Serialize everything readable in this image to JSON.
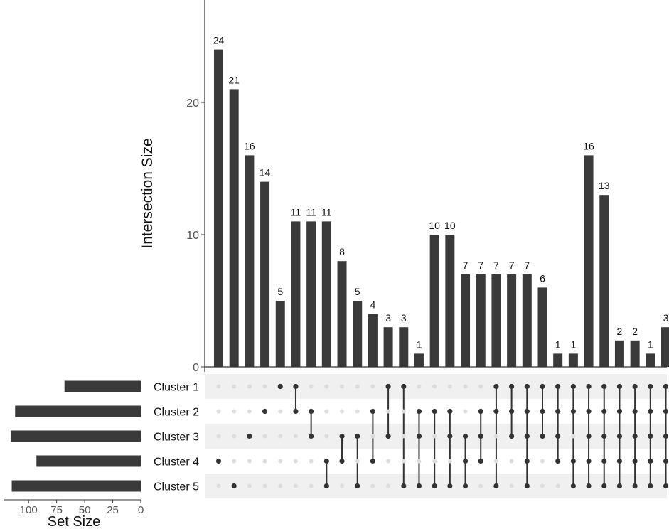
{
  "chart_data": {
    "type": "upset",
    "y_axis": {
      "label": "Intersection Size",
      "ticks": [
        0,
        10,
        20
      ],
      "ylim": [
        0,
        27
      ]
    },
    "set_size_axis": {
      "label": "Set Size",
      "ticks": [
        100,
        75,
        50,
        25,
        0
      ],
      "xlim": [
        0,
        121
      ]
    },
    "sets": [
      {
        "name": "Cluster 1",
        "size": 68
      },
      {
        "name": "Cluster 2",
        "size": 112
      },
      {
        "name": "Cluster 3",
        "size": 116
      },
      {
        "name": "Cluster 4",
        "size": 93
      },
      {
        "name": "Cluster 5",
        "size": 115
      }
    ],
    "intersections": [
      {
        "sets": [
          3
        ],
        "value": 24
      },
      {
        "sets": [
          4
        ],
        "value": 21
      },
      {
        "sets": [
          2
        ],
        "value": 16
      },
      {
        "sets": [
          1
        ],
        "value": 14
      },
      {
        "sets": [
          0
        ],
        "value": 5
      },
      {
        "sets": [
          0,
          1
        ],
        "value": 11
      },
      {
        "sets": [
          1,
          2
        ],
        "value": 11
      },
      {
        "sets": [
          3,
          4
        ],
        "value": 11
      },
      {
        "sets": [
          2,
          3
        ],
        "value": 8
      },
      {
        "sets": [
          2,
          4
        ],
        "value": 5
      },
      {
        "sets": [
          1,
          3
        ],
        "value": 4
      },
      {
        "sets": [
          0,
          2
        ],
        "value": 3
      },
      {
        "sets": [
          0,
          4
        ],
        "value": 3
      },
      {
        "sets": [
          1,
          2,
          4
        ],
        "value": 1
      },
      {
        "sets": [
          1,
          4
        ],
        "value": 10
      },
      {
        "sets": [
          1,
          2,
          4
        ],
        "value": 10
      },
      {
        "sets": [
          2,
          3,
          4
        ],
        "value": 7
      },
      {
        "sets": [
          1,
          2,
          3
        ],
        "value": 7
      },
      {
        "sets": [
          0,
          1,
          4
        ],
        "value": 7
      },
      {
        "sets": [
          0,
          1,
          2
        ],
        "value": 7
      },
      {
        "sets": [
          0,
          1,
          2,
          3,
          4
        ],
        "value": 7
      },
      {
        "sets": [
          0,
          1,
          2
        ],
        "value": 6
      },
      {
        "sets": [
          0,
          1,
          2,
          3
        ],
        "value": 1
      },
      {
        "sets": [
          0,
          1,
          3,
          4
        ],
        "value": 1
      },
      {
        "sets": [
          0,
          1,
          2,
          3,
          4
        ],
        "value": 16
      },
      {
        "sets": [
          0,
          1,
          2,
          3,
          4
        ],
        "value": 13
      },
      {
        "sets": [
          0,
          1,
          2,
          3,
          4
        ],
        "value": 2
      },
      {
        "sets": [
          0,
          1,
          2,
          3,
          4
        ],
        "value": 2
      },
      {
        "sets": [
          0,
          1,
          2,
          3,
          4
        ],
        "value": 1
      },
      {
        "sets": [
          0,
          1,
          2,
          3,
          4
        ],
        "value": 3
      }
    ]
  },
  "colors": {
    "bar": "#3a3a3a",
    "dot_active": "#333333",
    "dot_inactive": "#dddddd",
    "stripe": "#f0f0f0",
    "axis": "#333333",
    "tick_text": "#555555",
    "text": "#111111"
  }
}
